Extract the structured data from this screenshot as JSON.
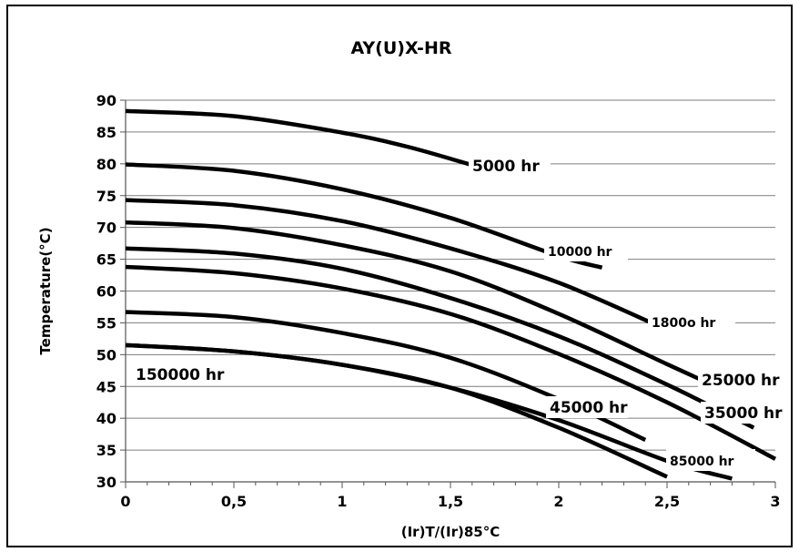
{
  "chart_data": {
    "type": "line",
    "title": "AY(U)X-HR",
    "xlabel": "(Ir)T/(Ir)85°C",
    "ylabel": "Temperature(°C)",
    "xlim": [
      0,
      3
    ],
    "ylim": [
      30,
      90
    ],
    "x_ticks": [
      "0",
      "0,5",
      "1",
      "1,5",
      "2",
      "2,5",
      "3"
    ],
    "x_tick_values": [
      0,
      0.5,
      1,
      1.5,
      2,
      2.5,
      3
    ],
    "y_ticks": [
      "30",
      "35",
      "40",
      "45",
      "50",
      "55",
      "60",
      "65",
      "70",
      "75",
      "80",
      "85",
      "90"
    ],
    "y_tick_values": [
      30,
      35,
      40,
      45,
      50,
      55,
      60,
      65,
      70,
      75,
      80,
      85,
      90
    ],
    "grid": "horizontal",
    "legend": "none",
    "line_color": "#000000",
    "series": [
      {
        "label": "5000 hr",
        "x": [
          0,
          0.5,
          1.0,
          1.3,
          1.6
        ],
        "y": [
          88.3,
          87.5,
          84.9,
          82.7,
          79.8
        ]
      },
      {
        "label": "10000 hr",
        "x": [
          0,
          0.5,
          1.0,
          1.5,
          2.0,
          2.2
        ],
        "y": [
          79.9,
          78.9,
          76.0,
          71.5,
          65.5,
          63.7
        ]
      },
      {
        "label": "1800o hr",
        "x": [
          0,
          0.5,
          1.0,
          1.5,
          2.0,
          2.5
        ],
        "y": [
          74.3,
          73.5,
          71.0,
          66.7,
          61.3,
          53.9
        ]
      },
      {
        "label": "25000 hr",
        "x": [
          0,
          0.5,
          1.0,
          1.5,
          2.0,
          2.5,
          2.75
        ],
        "y": [
          70.8,
          69.9,
          67.2,
          63.1,
          56.4,
          48.5,
          44.6
        ]
      },
      {
        "label": "35000 hr",
        "x": [
          0,
          0.5,
          1.0,
          1.5,
          2.0,
          2.5,
          2.9
        ],
        "y": [
          66.7,
          65.9,
          63.5,
          58.9,
          52.9,
          45.3,
          38.5
        ]
      },
      {
        "label": "",
        "x": [
          0,
          0.5,
          1.0,
          1.5,
          2.0,
          2.5,
          3.0
        ],
        "y": [
          63.8,
          62.8,
          60.4,
          56.4,
          50.1,
          42.5,
          33.6
        ]
      },
      {
        "label": "45000 hr",
        "x": [
          0,
          0.5,
          1.0,
          1.5,
          2.0,
          2.4
        ],
        "y": [
          56.7,
          55.9,
          53.4,
          49.5,
          43.0,
          36.6
        ]
      },
      {
        "label": "85000 hr",
        "x": [
          0,
          0.5,
          1.0,
          1.5,
          2.0,
          2.5,
          2.8
        ],
        "y": [
          51.5,
          50.5,
          48.4,
          44.8,
          39.7,
          33.3,
          30.5
        ]
      },
      {
        "label": "150000 hr",
        "x": [
          0,
          0.5,
          1.0,
          1.5,
          2.0,
          2.5
        ],
        "y": [
          51.5,
          50.5,
          48.4,
          44.8,
          38.5,
          30.8
        ]
      }
    ]
  }
}
